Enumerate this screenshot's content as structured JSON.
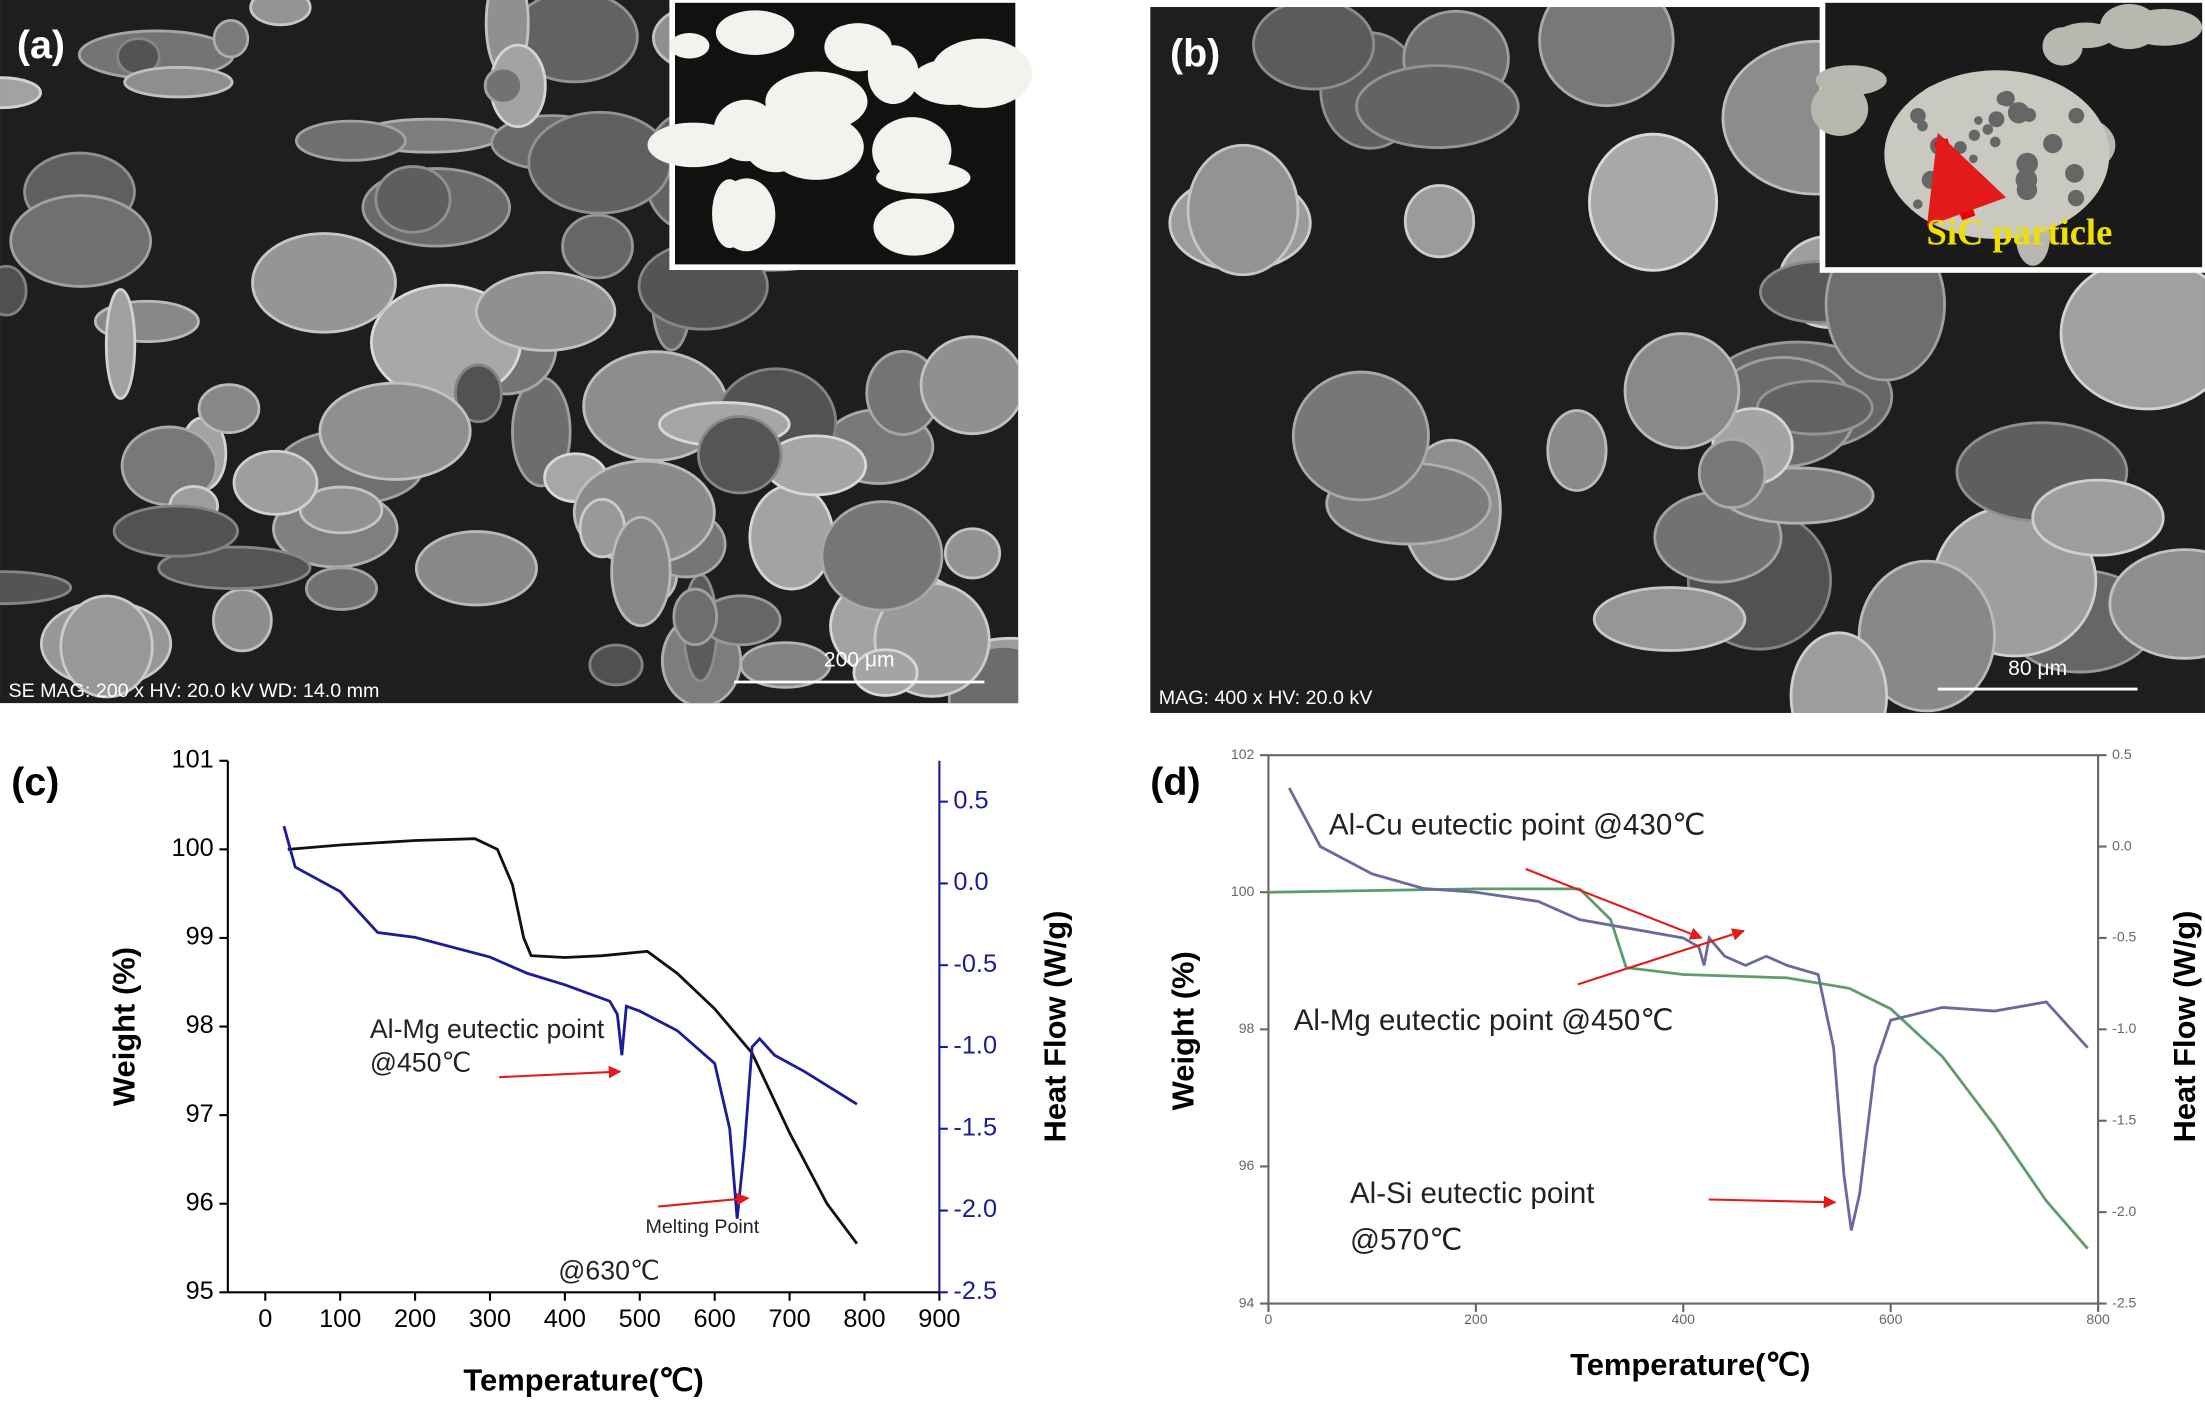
{
  "panels": [
    {
      "label": "(a)",
      "scale_bar": "200 μm",
      "info": "SE  MAG: 200 x  HV: 20.0 kV  WD: 14.0 mm"
    },
    {
      "label": "(b)",
      "scale_bar": "80 μm",
      "info": "MAG: 400 x  HV: 20.0 kV",
      "inset_label": "SiC particle"
    }
  ],
  "chart_data": [
    {
      "type": "line",
      "panel_label": "(c)",
      "x_label": "Temperature(℃)",
      "y_label": "Weight (%)",
      "y2_label": "Heat Flow (W/g)",
      "xlim": [
        -50,
        900
      ],
      "xticks": [
        0,
        100,
        200,
        300,
        400,
        500,
        600,
        700,
        800,
        900
      ],
      "ylim": [
        95,
        101
      ],
      "yticks": [
        95,
        96,
        97,
        98,
        99,
        100,
        101
      ],
      "y2lim": [
        -2.5,
        0.75
      ],
      "y2ticks": [
        {
          "value": -2.5,
          "label": "-2.5"
        },
        {
          "value": -2,
          "label": "-2.0"
        },
        {
          "value": -1.5,
          "label": "-1.5"
        },
        {
          "value": -1,
          "label": "-1.0"
        },
        {
          "value": -0.5,
          "label": "-0.5"
        },
        {
          "value": 0,
          "label": "0.0"
        },
        {
          "value": 0.5,
          "label": "0.5"
        }
      ],
      "series": [
        {
          "color": "#111111",
          "x": [
            30,
            100,
            200,
            280,
            310,
            330,
            345,
            355,
            400,
            450,
            510,
            550,
            600,
            650,
            700,
            750,
            790
          ],
          "values": [
            100.0,
            100.05,
            100.1,
            100.12,
            100.0,
            99.6,
            99.0,
            98.8,
            98.78,
            98.8,
            98.85,
            98.6,
            98.2,
            97.7,
            96.8,
            96.0,
            95.55
          ]
        },
        {
          "color": "#1c1c96",
          "axis": "y2",
          "x": [
            25,
            40,
            100,
            150,
            200,
            300,
            350,
            400,
            460,
            470,
            476,
            482,
            500,
            550,
            600,
            620,
            630,
            640,
            650,
            660,
            680,
            720,
            790
          ],
          "values": [
            0.35,
            0.1,
            -0.05,
            -0.3,
            -0.33,
            -0.45,
            -0.55,
            -0.62,
            -0.72,
            -0.8,
            -1.05,
            -0.75,
            -0.78,
            -0.9,
            -1.1,
            -1.5,
            -2.05,
            -1.6,
            -1.0,
            -0.95,
            -1.05,
            -1.15,
            -1.35
          ]
        }
      ],
      "annotations": [
        "Al-Mg eutectic point",
        "@450℃",
        "Melting Point",
        "@630℃"
      ]
    },
    {
      "type": "line",
      "panel_label": "(d)",
      "x_label": "Temperature(℃)",
      "y_label": "Weight (%)",
      "y2_label": "Heat Flow (W/g)",
      "xlim": [
        0,
        800
      ],
      "xticks": [
        0,
        200,
        400,
        600,
        800
      ],
      "ylim": [
        94,
        102
      ],
      "yticks": [
        94,
        96,
        98,
        100,
        102
      ],
      "y2lim": [
        -2.5,
        0.5
      ],
      "y2ticks": [
        {
          "value": -2.5,
          "label": "-2.5"
        },
        {
          "value": -2,
          "label": "-2.0"
        },
        {
          "value": -1.5,
          "label": "-1.5"
        },
        {
          "value": -1,
          "label": "-1.0"
        },
        {
          "value": -0.5,
          "label": "-0.5"
        },
        {
          "value": 0,
          "label": "0.0"
        },
        {
          "value": 0.5,
          "label": "0.5"
        }
      ],
      "series": [
        {
          "color": "#5e9c6c",
          "x": [
            0,
            200,
            300,
            330,
            345,
            400,
            500,
            560,
            600,
            650,
            700,
            750,
            790
          ],
          "values": [
            100.0,
            100.05,
            100.05,
            99.6,
            98.9,
            98.8,
            98.75,
            98.6,
            98.3,
            97.6,
            96.6,
            95.5,
            94.8
          ]
        },
        {
          "color": "#6a6a9c",
          "axis": "y2",
          "x": [
            20,
            50,
            100,
            150,
            200,
            260,
            300,
            350,
            400,
            415,
            420,
            425,
            440,
            460,
            480,
            500,
            530,
            545,
            555,
            562,
            570,
            585,
            600,
            650,
            700,
            750,
            790
          ],
          "values": [
            0.32,
            0.0,
            -0.15,
            -0.23,
            -0.25,
            -0.3,
            -0.4,
            -0.45,
            -0.5,
            -0.55,
            -0.65,
            -0.5,
            -0.6,
            -0.65,
            -0.6,
            -0.65,
            -0.7,
            -1.1,
            -1.8,
            -2.1,
            -1.9,
            -1.2,
            -0.95,
            -0.88,
            -0.9,
            -0.85,
            -1.1
          ]
        }
      ],
      "annotations": [
        "Al-Cu eutectic point @430℃",
        "Al-Mg eutectic point @450℃",
        "Al-Si eutectic point",
        "@570℃"
      ]
    }
  ]
}
